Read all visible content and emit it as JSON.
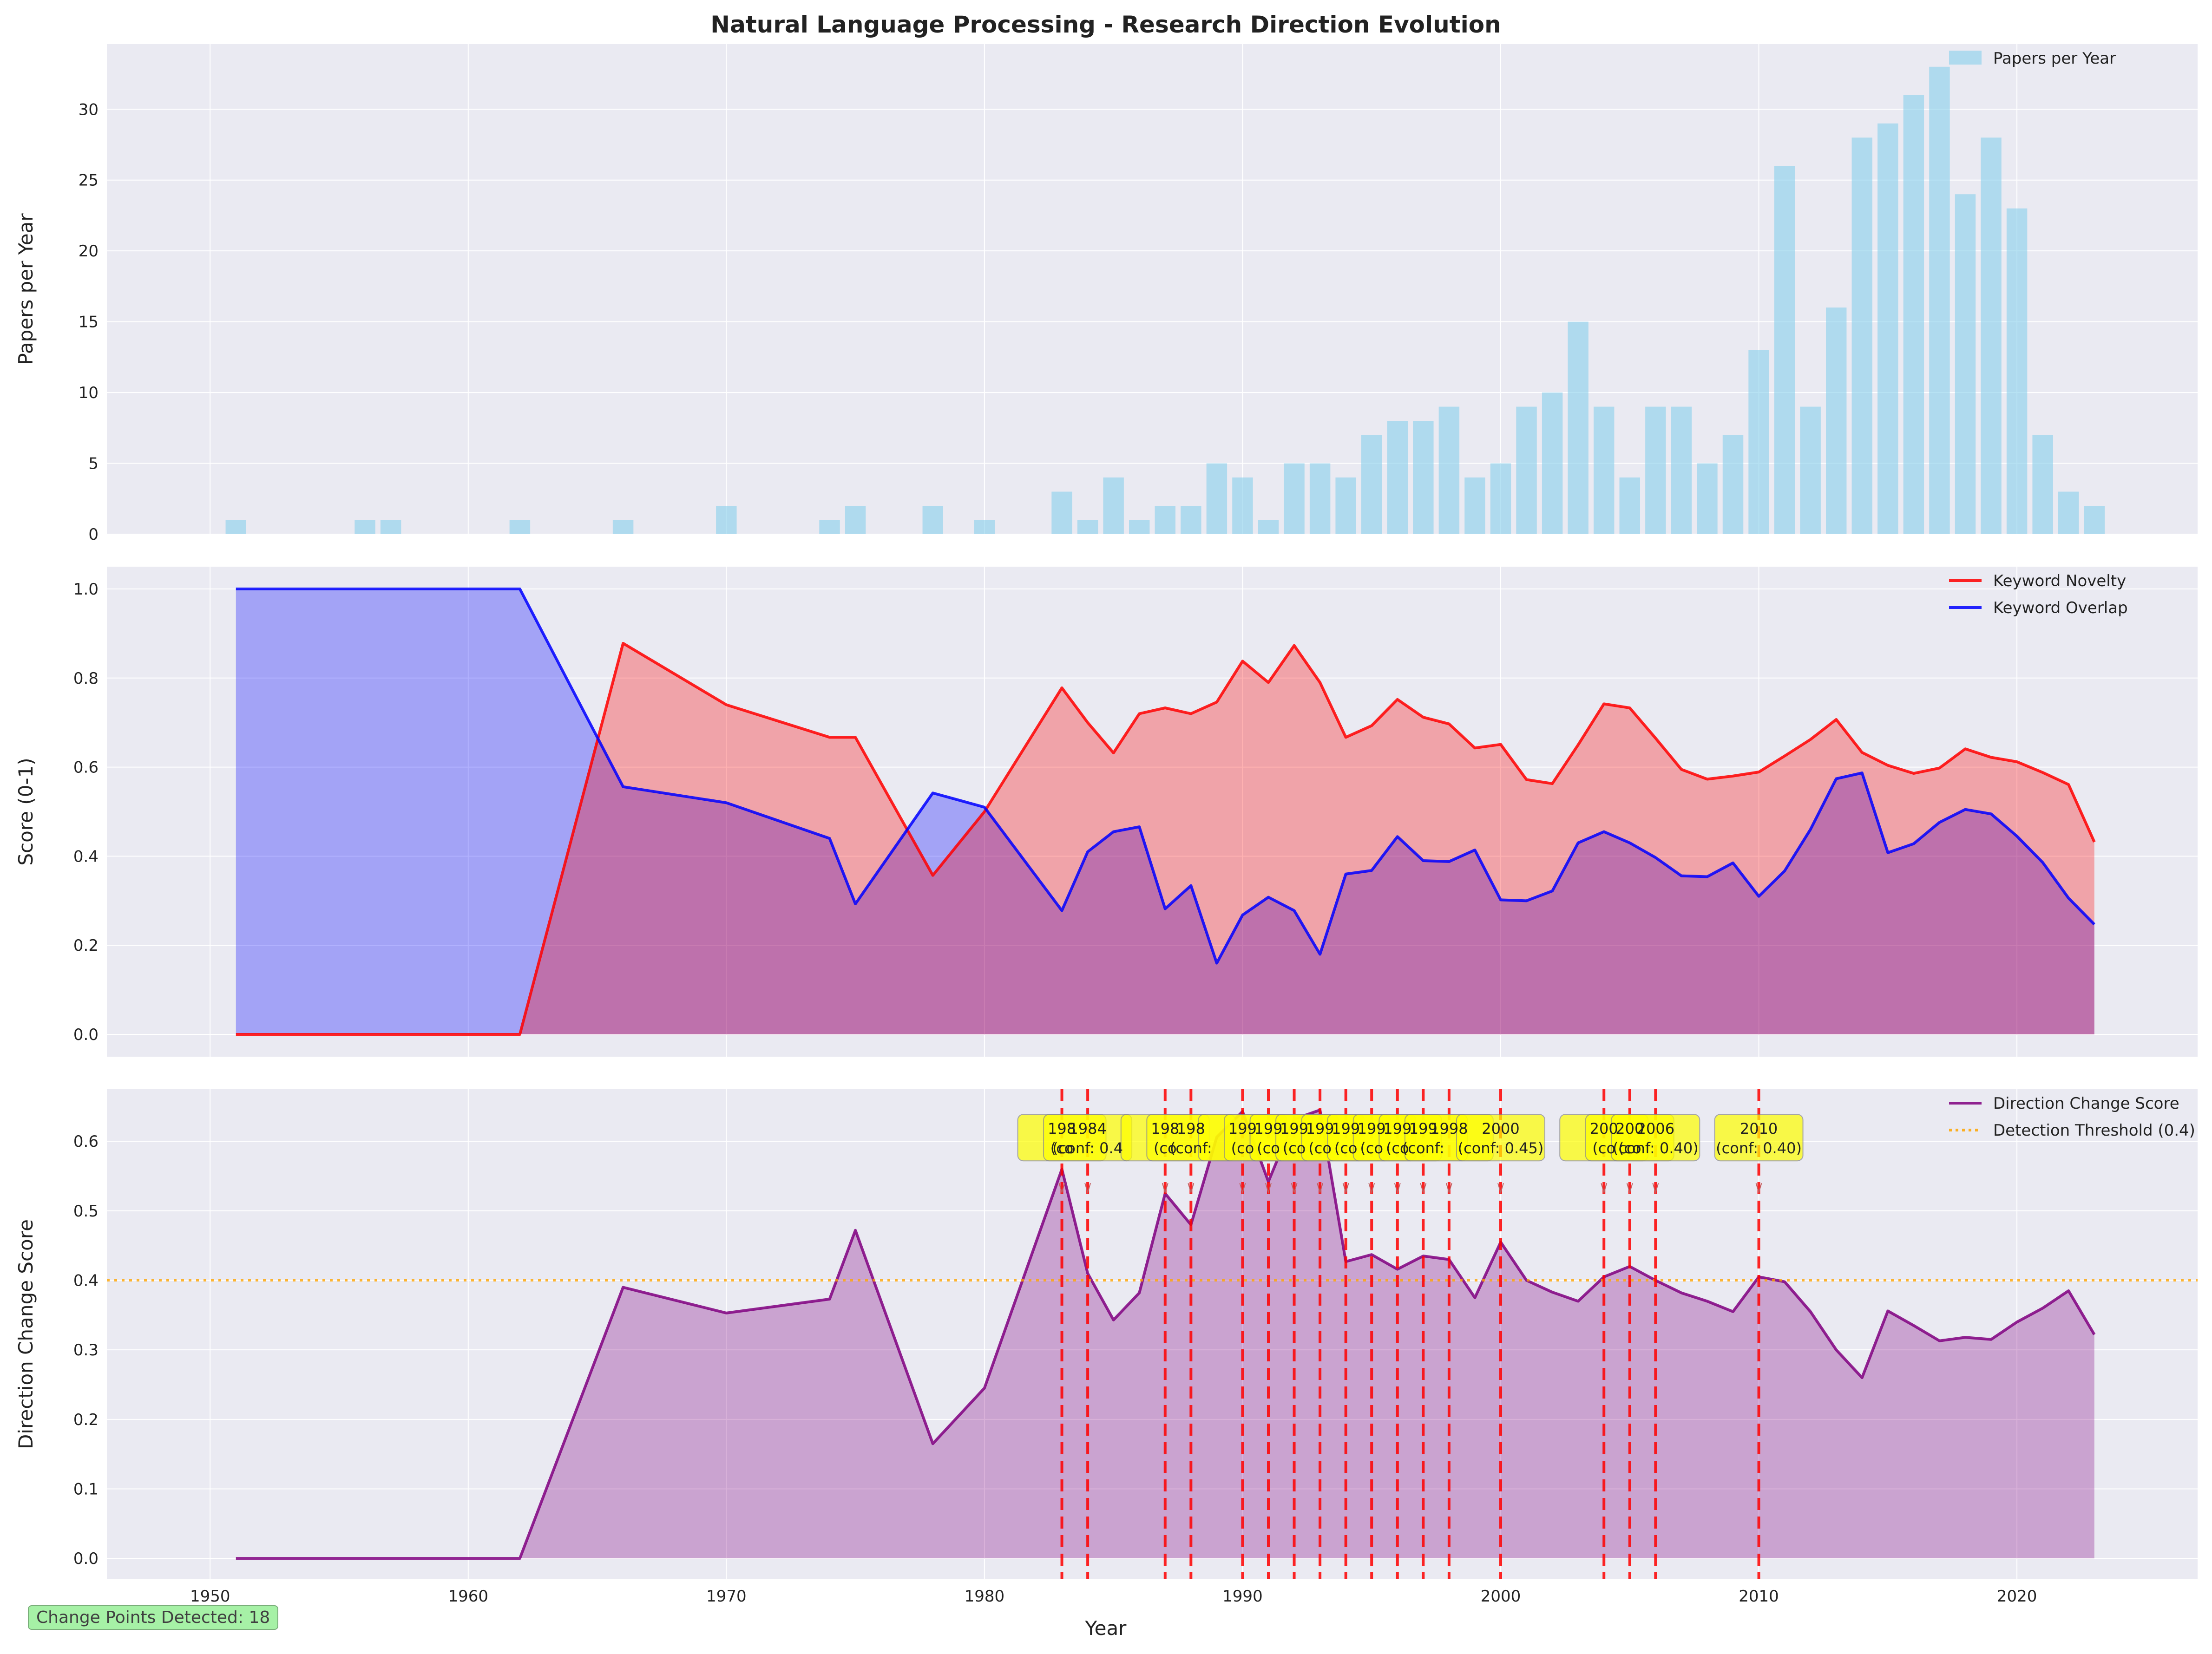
{
  "figure": {
    "title": "Natural Language Processing - Research Direction Evolution",
    "xlabel": "Year",
    "footer_badge": "Change Points Detected: 18"
  },
  "colors": {
    "panel_bg": "#EAEAF2",
    "bar": "#87CEEB",
    "novelty": "#FF0000",
    "overlap": "#0000FF",
    "direction": "#800080",
    "threshold": "#FFA500",
    "change_line": "#FF0000",
    "annotation_bg": "#FFFF00"
  },
  "chart_data": [
    {
      "type": "bar",
      "ylabel": "Papers per Year",
      "legend": [
        "Papers per Year"
      ],
      "legend_position": "upper right",
      "xlim": [
        1946,
        2027
      ],
      "ylim": [
        0,
        34.6
      ],
      "yticks": [
        0,
        5,
        10,
        15,
        20,
        25,
        30
      ],
      "grid": true,
      "x": [
        1951,
        1956,
        1957,
        1962,
        1966,
        1970,
        1974,
        1975,
        1978,
        1980,
        1983,
        1984,
        1985,
        1986,
        1987,
        1988,
        1989,
        1990,
        1991,
        1992,
        1993,
        1994,
        1995,
        1996,
        1997,
        1998,
        1999,
        2000,
        2001,
        2002,
        2003,
        2004,
        2005,
        2006,
        2007,
        2008,
        2009,
        2010,
        2011,
        2012,
        2013,
        2014,
        2015,
        2016,
        2017,
        2018,
        2019,
        2020,
        2021,
        2022,
        2023
      ],
      "values": [
        1,
        1,
        1,
        1,
        1,
        2,
        1,
        2,
        2,
        1,
        3,
        1,
        4,
        1,
        2,
        2,
        5,
        4,
        1,
        5,
        5,
        4,
        7,
        8,
        8,
        9,
        4,
        5,
        9,
        10,
        15,
        9,
        4,
        9,
        9,
        5,
        7,
        13,
        26,
        9,
        16,
        28,
        29,
        31,
        33,
        24,
        28,
        23,
        7,
        3,
        2
      ]
    },
    {
      "type": "area",
      "ylabel": "Score (0-1)",
      "legend_position": "upper right",
      "xlim": [
        1946,
        2027
      ],
      "ylim": [
        -0.05,
        1.05
      ],
      "yticks": [
        0.0,
        0.2,
        0.4,
        0.6,
        0.8,
        1.0
      ],
      "grid": true,
      "x": [
        1951,
        1962,
        1966,
        1970,
        1974,
        1975,
        1978,
        1980,
        1983,
        1984,
        1985,
        1986,
        1987,
        1988,
        1989,
        1990,
        1991,
        1992,
        1993,
        1994,
        1995,
        1996,
        1997,
        1998,
        1999,
        2000,
        2001,
        2002,
        2003,
        2004,
        2005,
        2006,
        2007,
        2008,
        2009,
        2010,
        2011,
        2012,
        2013,
        2014,
        2015,
        2016,
        2017,
        2018,
        2019,
        2020,
        2021,
        2022,
        2023
      ],
      "series": [
        {
          "name": "Keyword Novelty",
          "values": [
            0,
            0,
            0.878,
            0.74,
            0.667,
            0.667,
            0.357,
            0.5,
            0.778,
            0.7,
            0.632,
            0.72,
            0.733,
            0.72,
            0.746,
            0.838,
            0.79,
            0.873,
            0.79,
            0.667,
            0.693,
            0.752,
            0.712,
            0.697,
            0.643,
            0.651,
            0.572,
            0.563,
            0.65,
            0.742,
            0.733,
            0.665,
            0.595,
            0.573,
            0.58,
            0.589,
            0.625,
            0.662,
            0.707,
            0.633,
            0.604,
            0.586,
            0.598,
            0.641,
            0.622,
            0.612,
            0.588,
            0.561,
            0.432
          ]
        },
        {
          "name": "Keyword Overlap",
          "values": [
            1,
            1,
            0.556,
            0.52,
            0.44,
            0.293,
            0.542,
            0.51,
            0.278,
            0.41,
            0.455,
            0.466,
            0.282,
            0.334,
            0.16,
            0.268,
            0.308,
            0.278,
            0.18,
            0.36,
            0.368,
            0.444,
            0.39,
            0.388,
            0.414,
            0.302,
            0.3,
            0.322,
            0.43,
            0.455,
            0.43,
            0.397,
            0.356,
            0.354,
            0.385,
            0.31,
            0.367,
            0.46,
            0.574,
            0.587,
            0.408,
            0.428,
            0.476,
            0.505,
            0.495,
            0.445,
            0.386,
            0.306,
            0.247
          ]
        }
      ]
    },
    {
      "type": "line",
      "ylabel": "Direction Change Score",
      "legend_position": "upper right",
      "xlim": [
        1946,
        2027
      ],
      "ylim": [
        -0.03,
        0.675
      ],
      "yticks": [
        0.0,
        0.1,
        0.2,
        0.3,
        0.4,
        0.5,
        0.6
      ],
      "xticks": [
        1950,
        1960,
        1970,
        1980,
        1990,
        2000,
        2010,
        2020
      ],
      "grid": true,
      "x": [
        1951,
        1962,
        1966,
        1970,
        1974,
        1975,
        1978,
        1980,
        1983,
        1984,
        1985,
        1986,
        1987,
        1988,
        1989,
        1990,
        1991,
        1992,
        1993,
        1994,
        1995,
        1996,
        1997,
        1998,
        1999,
        2000,
        2001,
        2002,
        2003,
        2004,
        2005,
        2006,
        2007,
        2008,
        2009,
        2010,
        2011,
        2012,
        2013,
        2014,
        2015,
        2016,
        2017,
        2018,
        2019,
        2020,
        2021,
        2022,
        2023
      ],
      "series": [
        {
          "name": "Direction Change Score",
          "values": [
            0,
            0,
            0.39,
            0.353,
            0.373,
            0.472,
            0.165,
            0.245,
            0.56,
            0.41,
            0.343,
            0.382,
            0.525,
            0.48,
            0.606,
            0.643,
            0.542,
            0.632,
            0.645,
            0.427,
            0.437,
            0.416,
            0.435,
            0.43,
            0.375,
            0.455,
            0.4,
            0.383,
            0.37,
            0.405,
            0.42,
            0.4,
            0.382,
            0.37,
            0.355,
            0.405,
            0.398,
            0.355,
            0.3,
            0.26,
            0.356,
            0.335,
            0.313,
            0.318,
            0.315,
            0.34,
            0.36,
            0.385,
            0.322
          ]
        }
      ],
      "threshold": {
        "name": "Detection Threshold (0.4)",
        "value": 0.4
      },
      "change_points": [
        1983,
        1984,
        1987,
        1988,
        1990,
        1991,
        1992,
        1993,
        1994,
        1995,
        1996,
        1997,
        1998,
        2000,
        2004,
        2005,
        2006,
        2010
      ],
      "annotations": [
        {
          "year": 1983,
          "line1": "198",
          "line2": "(co"
        },
        {
          "year": 1984,
          "line1": "1984",
          "line2": "(conf: 0.4"
        },
        {
          "year": 1987,
          "line1": "198",
          "line2": "(co"
        },
        {
          "year": 1988,
          "line1": "198",
          "line2": "(conf:"
        },
        {
          "year": 1990,
          "line1": "199",
          "line2": "(co"
        },
        {
          "year": 1991,
          "line1": "199",
          "line2": "(co"
        },
        {
          "year": 1992,
          "line1": "199",
          "line2": "(co"
        },
        {
          "year": 1993,
          "line1": "199",
          "line2": "(co"
        },
        {
          "year": 1994,
          "line1": "199",
          "line2": "(co"
        },
        {
          "year": 1995,
          "line1": "199",
          "line2": "(co"
        },
        {
          "year": 1996,
          "line1": "199",
          "line2": "(co"
        },
        {
          "year": 1997,
          "line1": "199",
          "line2": "(conf:"
        },
        {
          "year": 1998,
          "line1": "1998",
          "line2": ""
        },
        {
          "year": 2000,
          "line1": "2000",
          "line2": "(conf: 0.45)"
        },
        {
          "year": 2004,
          "line1": "200",
          "line2": "(co"
        },
        {
          "year": 2005,
          "line1": "200",
          "line2": "(co"
        },
        {
          "year": 2006,
          "line1": "2006",
          "line2": "(conf: 0.40)"
        },
        {
          "year": 2010,
          "line1": "2010",
          "line2": "(conf: 0.40)"
        }
      ]
    }
  ]
}
